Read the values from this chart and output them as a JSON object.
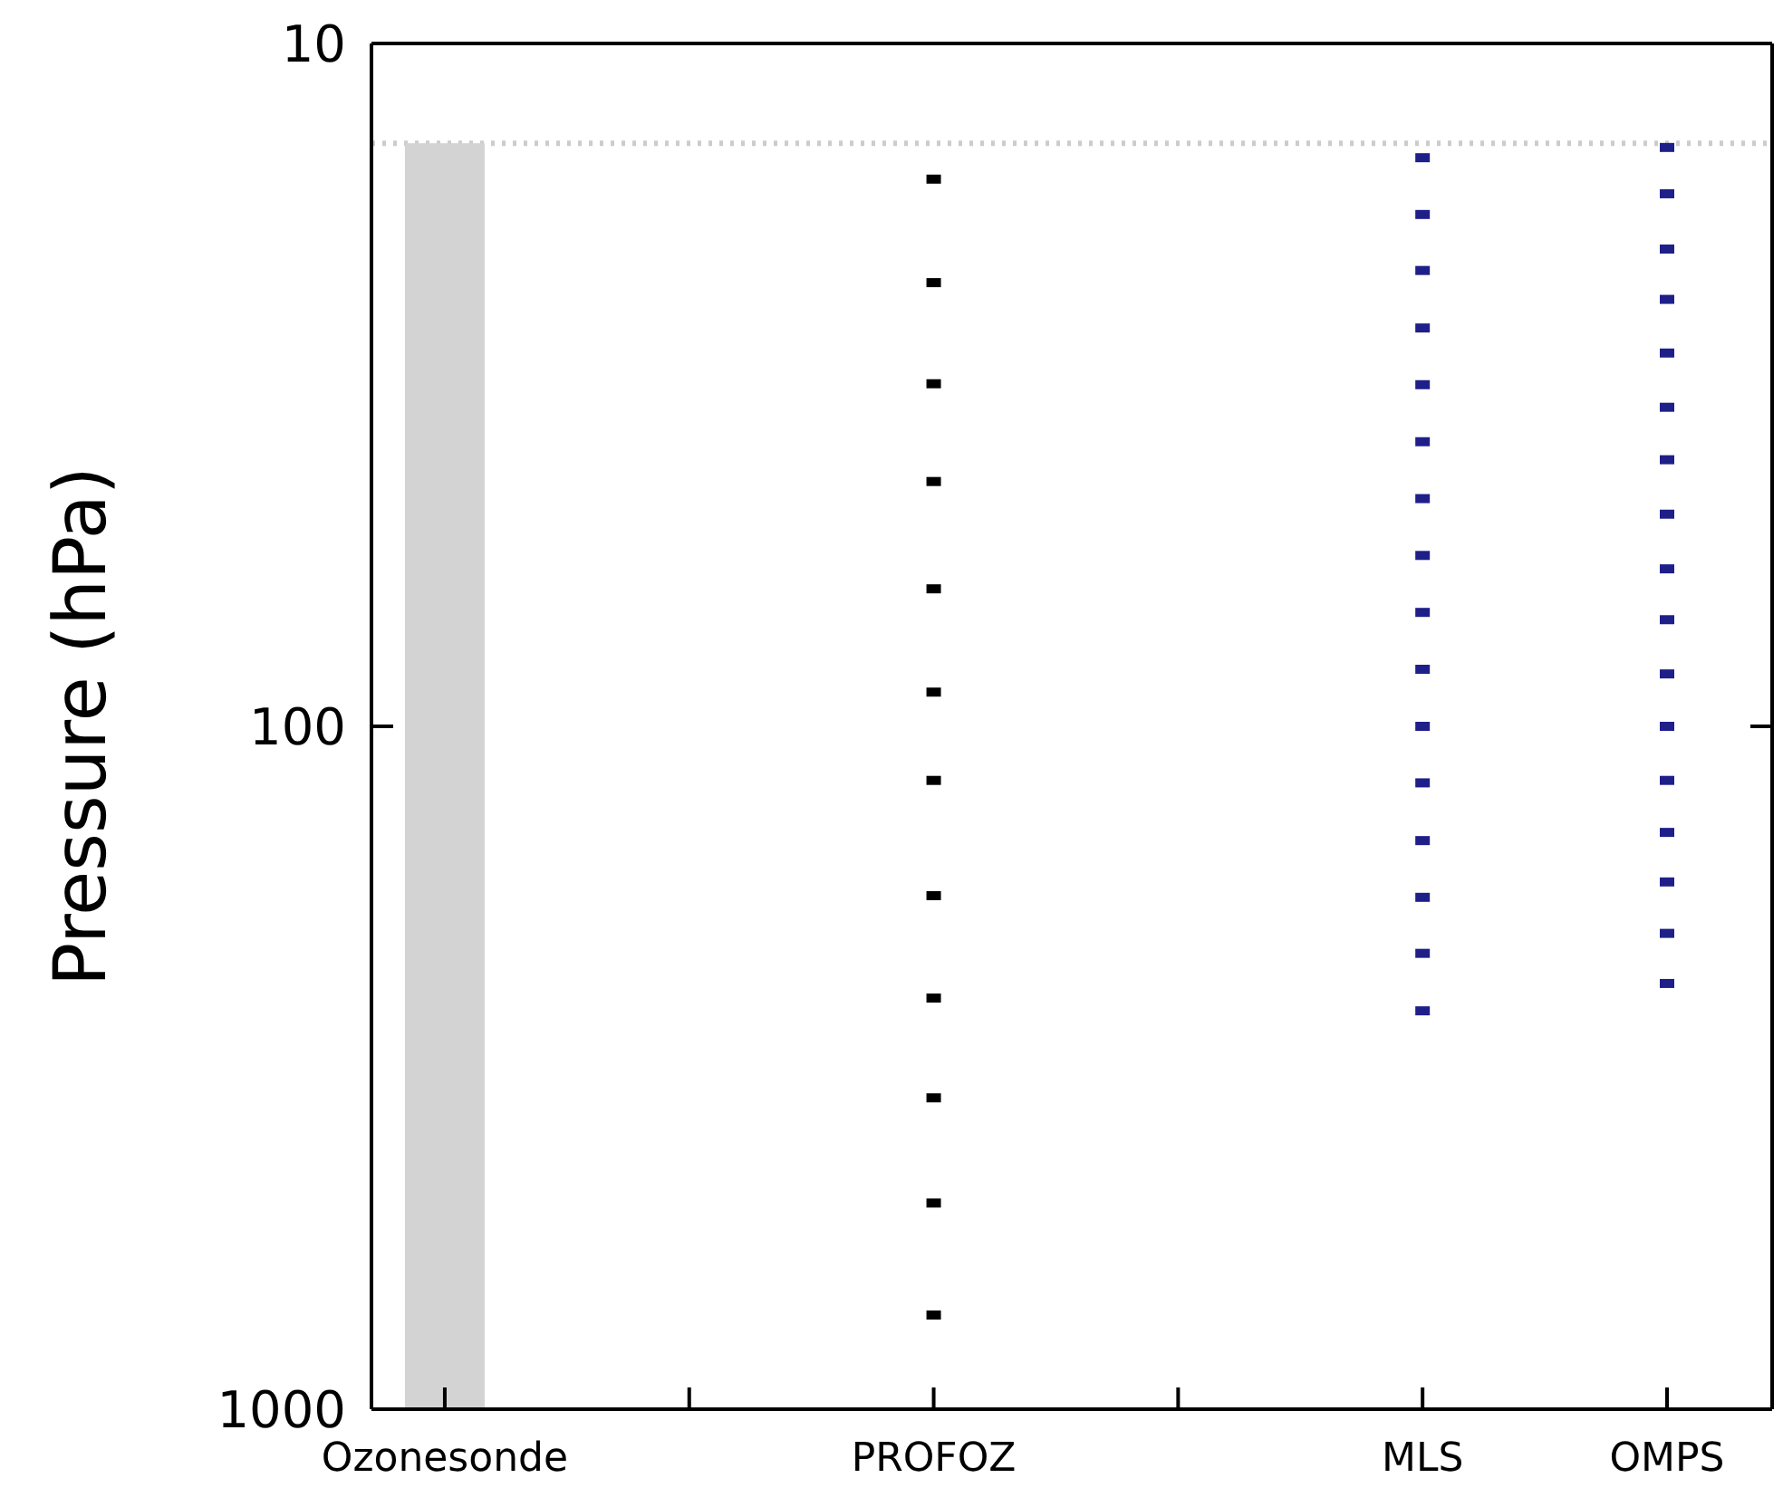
{
  "chart_data": {
    "type": "bar",
    "ylabel": "Pressure (hPa)",
    "log": "y",
    "ylim": [
      1000,
      10
    ],
    "yticks": [
      10,
      100,
      1000
    ],
    "grid": false,
    "categories": [
      "Ozonesonde",
      null,
      "PROFOZ",
      null,
      "MLS",
      "OMPS"
    ],
    "ref_lines": [
      {
        "axis": "y",
        "value": 14,
        "color": "#cccccc",
        "line_style": "dotted"
      }
    ],
    "series": [
      {
        "color": "#d3d3d3",
        "base": [
          14,
          null,
          null,
          null,
          null,
          null
        ],
        "values": [
          986,
          null,
          null,
          null,
          null,
          null
        ]
      },
      {
        "type": "scatter",
        "color": "#000000",
        "x": [
          "PROFOZ",
          "PROFOZ",
          "PROFOZ",
          "PROFOZ",
          "PROFOZ",
          "PROFOZ",
          "PROFOZ",
          "PROFOZ",
          "PROFOZ",
          "PROFOZ",
          "PROFOZ",
          "PROFOZ"
        ],
        "values": [
          15.8,
          22.4,
          31.5,
          43.8,
          62.9,
          89.1,
          120,
          177,
          250,
          350,
          499,
          728
        ]
      },
      {
        "type": "scatter",
        "color": "#1f1f8a",
        "x": [
          "MLS",
          "MLS",
          "MLS",
          "MLS",
          "MLS",
          "MLS",
          "MLS",
          "MLS",
          "MLS",
          "MLS",
          "MLS",
          "MLS",
          "MLS",
          "MLS",
          "MLS",
          "MLS"
        ],
        "values": [
          14.7,
          17.8,
          21.5,
          26.1,
          31.6,
          38.3,
          46.4,
          56.2,
          68.1,
          82.5,
          100,
          121,
          147,
          178,
          215,
          261
        ]
      },
      {
        "type": "scatter",
        "color": "#1f1f8a",
        "x": [
          "OMPS",
          "OMPS",
          "OMPS",
          "OMPS",
          "OMPS",
          "OMPS",
          "OMPS",
          "OMPS",
          "OMPS",
          "OMPS",
          "OMPS",
          "OMPS",
          "OMPS",
          "OMPS",
          "OMPS",
          "OMPS",
          "OMPS"
        ],
        "values": [
          14.2,
          16.6,
          20.0,
          23.7,
          28.4,
          34.1,
          40.7,
          48.9,
          58.8,
          69.8,
          83.8,
          100,
          120,
          143,
          169,
          201,
          238
        ]
      }
    ]
  }
}
